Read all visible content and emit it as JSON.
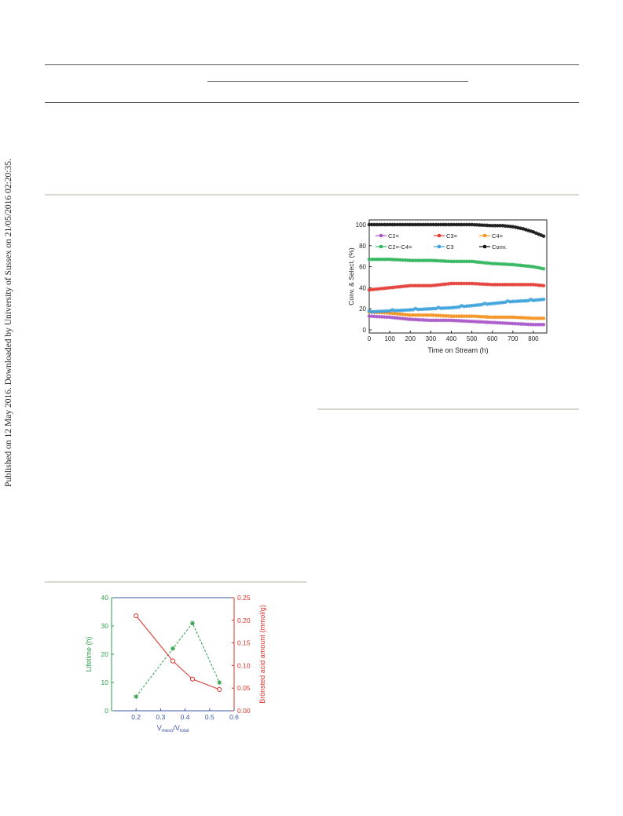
{
  "side_note": "Published on 12 May 2016. Downloaded by University of Sussex on 21/05/2016 02:20:35.",
  "chart_data": [
    {
      "type": "scatter",
      "xlabel": "Time on Stream (h)",
      "ylabel": "Conv. & Select. (%)",
      "xlim": [
        0,
        850
      ],
      "ylim": [
        0,
        100
      ],
      "xticks": [
        0,
        100,
        200,
        300,
        400,
        500,
        600,
        700,
        800
      ],
      "yticks": [
        0,
        20,
        40,
        60,
        80,
        100
      ],
      "grid": false,
      "legend": "top-left",
      "series": [
        {
          "name": "C2=",
          "color": "#a855c8",
          "x": [
            0,
            100,
            200,
            300,
            400,
            500,
            600,
            700,
            800,
            850
          ],
          "y": [
            13,
            12,
            10,
            9,
            9,
            8,
            7,
            6,
            5,
            5
          ]
        },
        {
          "name": "C3=",
          "color": "#e53935",
          "x": [
            0,
            100,
            200,
            300,
            400,
            500,
            600,
            700,
            800,
            850
          ],
          "y": [
            38,
            40,
            42,
            42,
            44,
            44,
            43,
            43,
            43,
            42
          ]
        },
        {
          "name": "C4=",
          "color": "#f5921e",
          "x": [
            0,
            100,
            200,
            300,
            400,
            500,
            600,
            700,
            800,
            850
          ],
          "y": [
            17,
            16,
            14,
            14,
            13,
            13,
            12,
            12,
            11,
            11
          ]
        },
        {
          "name": "C2=-C4=",
          "color": "#2db45a",
          "x": [
            0,
            100,
            200,
            300,
            400,
            500,
            600,
            700,
            800,
            850
          ],
          "y": [
            67,
            67,
            66,
            66,
            65,
            65,
            63,
            62,
            60,
            58
          ]
        },
        {
          "name": "C3",
          "color": "#3aa0dc",
          "x": [
            0,
            100,
            200,
            300,
            400,
            500,
            600,
            700,
            800,
            850
          ],
          "y": [
            17,
            18,
            19,
            20,
            21,
            23,
            25,
            27,
            28,
            29
          ]
        },
        {
          "name": "Conv.",
          "color": "#111111",
          "x": [
            0,
            100,
            200,
            300,
            400,
            500,
            600,
            650,
            700,
            750,
            800,
            850
          ],
          "y": [
            100,
            100,
            100,
            100,
            100,
            100,
            99,
            99,
            98,
            96,
            93,
            89
          ]
        }
      ]
    },
    {
      "type": "line",
      "xlabel": "V",
      "xlabel_sub1": "meso",
      "xlabel_mid": "/V",
      "xlabel_sub2": "total",
      "ylabel": "Lifetime (h)",
      "y2label": "Brönsted acid amount (mmol/g)",
      "xlim": [
        0.1,
        0.6
      ],
      "ylim": [
        0,
        40
      ],
      "y2lim": [
        0,
        0.25
      ],
      "xticks": [
        "0.2",
        "0.3",
        "0.4",
        "0.5",
        "0.6"
      ],
      "yticks": [
        "0",
        "10",
        "20",
        "30",
        "40"
      ],
      "y2ticks": [
        "0.00",
        "0.05",
        "0.10",
        "0.15",
        "0.20",
        "0.25"
      ],
      "series": [
        {
          "name": "Lifetime",
          "axis": "left",
          "color": "#2e9e48",
          "style": "dashed",
          "marker": "star",
          "x": [
            0.2,
            0.35,
            0.43,
            0.54
          ],
          "y": [
            5,
            22,
            31,
            10
          ]
        },
        {
          "name": "Brönsted acid amount",
          "axis": "right",
          "color": "#d9342b",
          "style": "solid",
          "marker": "open-circle",
          "x": [
            0.2,
            0.35,
            0.43,
            0.54
          ],
          "y": [
            0.21,
            0.11,
            0.07,
            0.047
          ]
        }
      ]
    }
  ]
}
